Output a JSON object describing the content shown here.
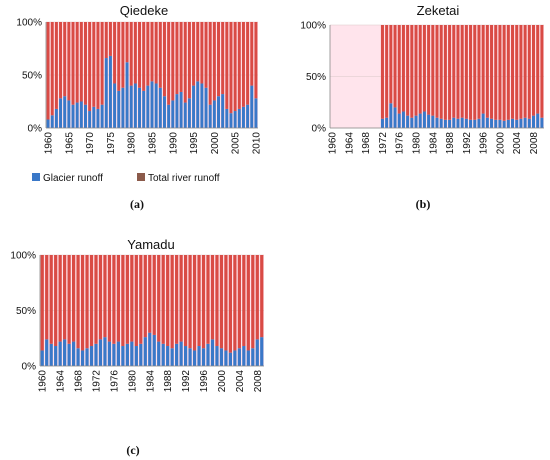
{
  "colors": {
    "glacier": "#3a78c8",
    "total": "#d94b45",
    "plot_bg": "#ffe4ec",
    "grid": "#d9c8c8",
    "stripe": "#e8a6a3"
  },
  "legend": {
    "glacier_label": "Glacier runoff",
    "total_label": "Total river runoff"
  },
  "chart_data": [
    {
      "type": "bar",
      "stacked": true,
      "panel_label": "(a)",
      "title": "Qiedeke",
      "yticks": [
        "0%",
        "50%",
        "100%"
      ],
      "ylim": [
        0,
        100
      ],
      "x_tick_labels": [
        "1960",
        "1965",
        "1970",
        "1975",
        "1980",
        "1985",
        "1990",
        "1995",
        "2000",
        "2005",
        "2010"
      ],
      "categories": [
        1960,
        1961,
        1962,
        1963,
        1964,
        1965,
        1966,
        1967,
        1968,
        1969,
        1970,
        1971,
        1972,
        1973,
        1974,
        1975,
        1976,
        1977,
        1978,
        1979,
        1980,
        1981,
        1982,
        1983,
        1984,
        1985,
        1986,
        1987,
        1988,
        1989,
        1990,
        1991,
        1992,
        1993,
        1994,
        1995,
        1996,
        1997,
        1998,
        1999,
        2000,
        2001,
        2002,
        2003,
        2004,
        2005,
        2006,
        2007,
        2008,
        2009,
        2010
      ],
      "series": [
        {
          "name": "Glacier runoff",
          "values": [
            8,
            12,
            18,
            28,
            30,
            26,
            22,
            24,
            25,
            22,
            16,
            20,
            18,
            22,
            66,
            68,
            42,
            35,
            38,
            62,
            40,
            42,
            38,
            35,
            40,
            44,
            42,
            38,
            30,
            22,
            26,
            32,
            34,
            24,
            28,
            40,
            44,
            42,
            38,
            22,
            26,
            30,
            32,
            18,
            14,
            16,
            18,
            20,
            22,
            40,
            28
          ]
        },
        {
          "name": "Total river runoff",
          "values": [
            92,
            88,
            82,
            72,
            70,
            74,
            78,
            76,
            75,
            78,
            84,
            80,
            82,
            78,
            34,
            32,
            58,
            65,
            62,
            38,
            60,
            58,
            62,
            65,
            60,
            56,
            58,
            62,
            70,
            78,
            74,
            68,
            66,
            76,
            72,
            60,
            56,
            58,
            62,
            78,
            74,
            70,
            68,
            82,
            86,
            84,
            82,
            80,
            78,
            60,
            72
          ]
        }
      ]
    },
    {
      "type": "bar",
      "stacked": true,
      "panel_label": "(b)",
      "title": "Zeketai",
      "yticks": [
        "0%",
        "50%",
        "100%"
      ],
      "ylim": [
        0,
        100
      ],
      "x_tick_labels": [
        "1960",
        "1964",
        "1968",
        "1972",
        "1976",
        "1980",
        "1984",
        "1988",
        "1992",
        "1996",
        "2000",
        "2004",
        "2008"
      ],
      "categories": [
        1960,
        1961,
        1962,
        1963,
        1964,
        1965,
        1966,
        1967,
        1968,
        1969,
        1970,
        1971,
        1972,
        1973,
        1974,
        1975,
        1976,
        1977,
        1978,
        1979,
        1980,
        1981,
        1982,
        1983,
        1984,
        1985,
        1986,
        1987,
        1988,
        1989,
        1990,
        1991,
        1992,
        1993,
        1994,
        1995,
        1996,
        1997,
        1998,
        1999,
        2000,
        2001,
        2002,
        2003,
        2004,
        2005,
        2006,
        2007,
        2008,
        2009,
        2010
      ],
      "series": [
        {
          "name": "Glacier runoff",
          "values": [
            null,
            null,
            null,
            null,
            null,
            null,
            null,
            null,
            null,
            null,
            null,
            null,
            9,
            10,
            24,
            20,
            14,
            16,
            12,
            10,
            12,
            14,
            16,
            13,
            12,
            10,
            9,
            8,
            8,
            10,
            9,
            10,
            9,
            8,
            8,
            9,
            14,
            10,
            9,
            8,
            8,
            7,
            8,
            9,
            8,
            9,
            10,
            9,
            12,
            14,
            10
          ]
        },
        {
          "name": "Total river runoff",
          "values": [
            null,
            null,
            null,
            null,
            null,
            null,
            null,
            null,
            null,
            null,
            null,
            null,
            91,
            90,
            76,
            80,
            86,
            84,
            88,
            90,
            88,
            86,
            84,
            87,
            88,
            90,
            91,
            92,
            92,
            90,
            91,
            90,
            91,
            92,
            92,
            91,
            86,
            90,
            91,
            92,
            92,
            93,
            92,
            91,
            92,
            91,
            90,
            91,
            88,
            86,
            90
          ]
        }
      ]
    },
    {
      "type": "bar",
      "stacked": true,
      "panel_label": "(c)",
      "title": "Yamadu",
      "yticks": [
        "0%",
        "50%",
        "100%"
      ],
      "ylim": [
        0,
        100
      ],
      "x_tick_labels": [
        "1960",
        "1964",
        "1968",
        "1972",
        "1976",
        "1980",
        "1984",
        "1988",
        "1992",
        "1996",
        "2000",
        "2004",
        "2008"
      ],
      "categories": [
        1960,
        1961,
        1962,
        1963,
        1964,
        1965,
        1966,
        1967,
        1968,
        1969,
        1970,
        1971,
        1972,
        1973,
        1974,
        1975,
        1976,
        1977,
        1978,
        1979,
        1980,
        1981,
        1982,
        1983,
        1984,
        1985,
        1986,
        1987,
        1988,
        1989,
        1990,
        1991,
        1992,
        1993,
        1994,
        1995,
        1996,
        1997,
        1998,
        1999,
        2000,
        2001,
        2002,
        2003,
        2004,
        2005,
        2006,
        2007,
        2008,
        2009
      ],
      "series": [
        {
          "name": "Glacier runoff",
          "values": [
            14,
            24,
            20,
            18,
            22,
            24,
            20,
            22,
            16,
            14,
            16,
            18,
            20,
            24,
            26,
            22,
            20,
            22,
            18,
            20,
            22,
            18,
            20,
            26,
            30,
            28,
            22,
            20,
            18,
            16,
            20,
            22,
            18,
            16,
            14,
            18,
            16,
            20,
            24,
            18,
            16,
            14,
            12,
            14,
            16,
            18,
            14,
            16,
            24,
            26
          ]
        },
        {
          "name": "Total river runoff",
          "values": [
            86,
            76,
            80,
            82,
            78,
            76,
            80,
            78,
            84,
            86,
            84,
            82,
            80,
            76,
            74,
            78,
            80,
            78,
            82,
            80,
            78,
            82,
            80,
            74,
            70,
            72,
            78,
            80,
            82,
            84,
            80,
            78,
            82,
            84,
            86,
            82,
            84,
            80,
            76,
            82,
            84,
            86,
            88,
            86,
            84,
            82,
            86,
            84,
            76,
            74
          ]
        }
      ]
    }
  ]
}
